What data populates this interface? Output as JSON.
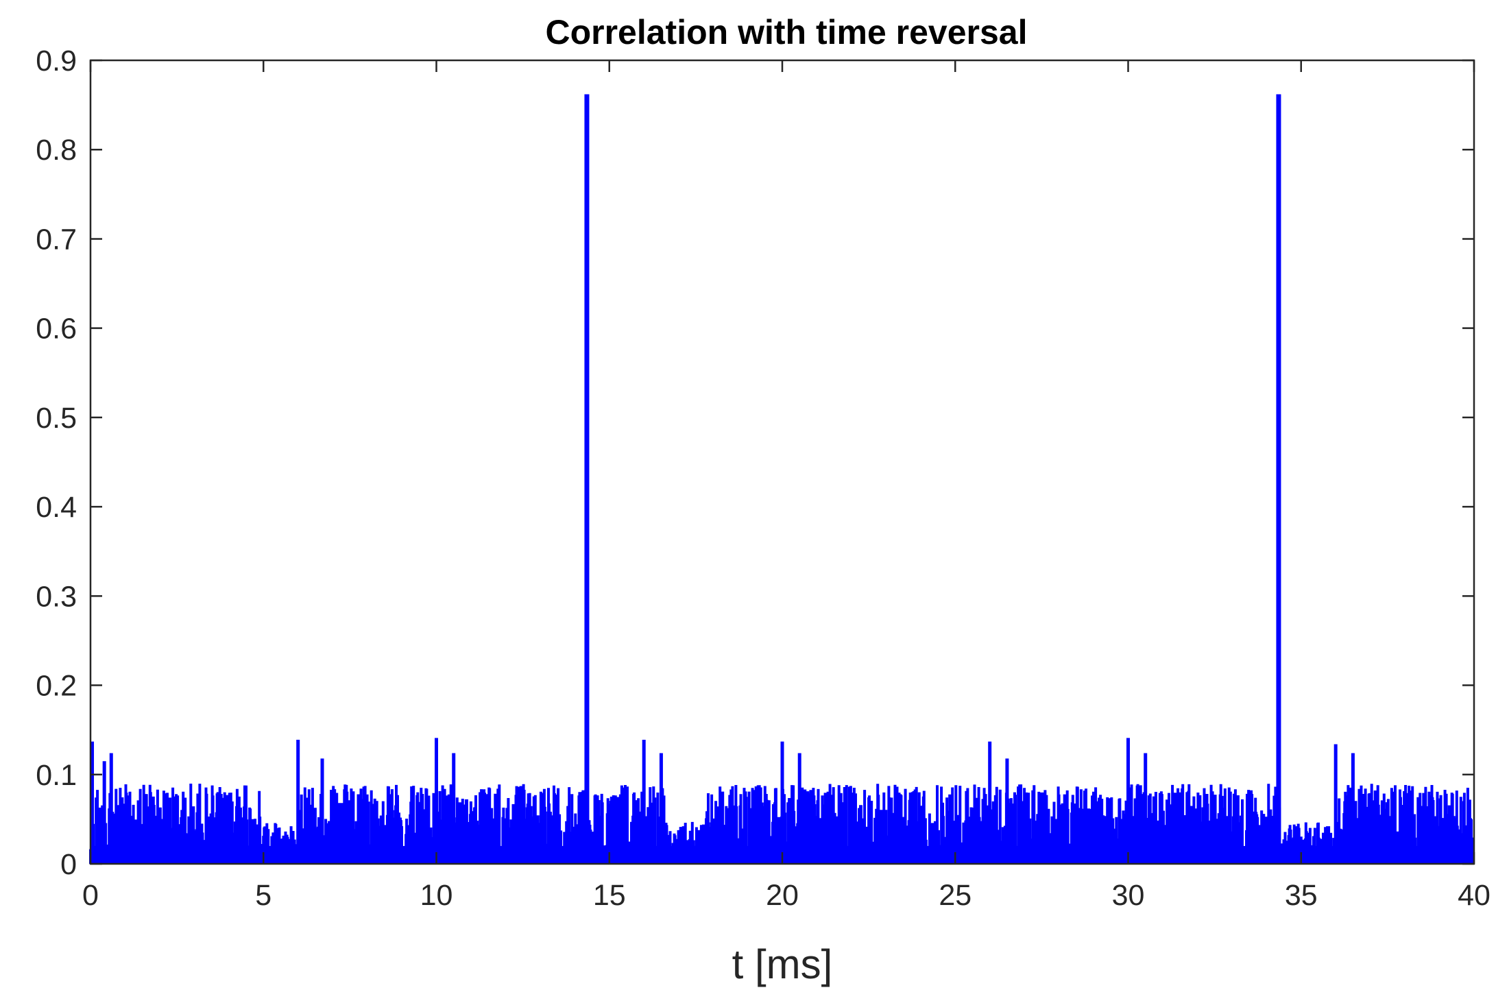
{
  "chart_data": {
    "type": "line",
    "title": "Correlation with time reversal",
    "xlabel": "t [ms]",
    "ylabel": "",
    "xlim": [
      0,
      40
    ],
    "ylim": [
      0,
      0.9
    ],
    "x_ticks": [
      "0",
      "5",
      "10",
      "15",
      "20",
      "25",
      "30",
      "35",
      "40"
    ],
    "y_ticks": [
      "0",
      "0.1",
      "0.2",
      "0.3",
      "0.4",
      "0.5",
      "0.6",
      "0.7",
      "0.8",
      "0.9"
    ],
    "grid": false,
    "line_color": "#0000ff",
    "series": [
      {
        "peaks": [
          {
            "x": 14.35,
            "y": 0.862
          },
          {
            "x": 34.35,
            "y": 0.862
          }
        ],
        "spikes": [
          {
            "x": 0.05,
            "y": 0.137
          },
          {
            "x": 0.4,
            "y": 0.115
          },
          {
            "x": 0.6,
            "y": 0.124
          },
          {
            "x": 6.0,
            "y": 0.139
          },
          {
            "x": 6.7,
            "y": 0.118
          },
          {
            "x": 10.0,
            "y": 0.141
          },
          {
            "x": 10.5,
            "y": 0.124
          },
          {
            "x": 16.0,
            "y": 0.139
          },
          {
            "x": 16.5,
            "y": 0.124
          },
          {
            "x": 20.0,
            "y": 0.137
          },
          {
            "x": 20.5,
            "y": 0.124
          },
          {
            "x": 26.0,
            "y": 0.137
          },
          {
            "x": 26.5,
            "y": 0.118
          },
          {
            "x": 30.0,
            "y": 0.141
          },
          {
            "x": 30.5,
            "y": 0.124
          },
          {
            "x": 36.0,
            "y": 0.134
          },
          {
            "x": 36.5,
            "y": 0.124
          }
        ],
        "noise_segments": [
          {
            "x_start": 0.0,
            "x_end": 4.9,
            "level": 0.09
          },
          {
            "x_start": 4.9,
            "x_end": 6.0,
            "level": 0.047
          },
          {
            "x_start": 6.0,
            "x_end": 16.6,
            "level": 0.09
          },
          {
            "x_start": 16.6,
            "x_end": 17.8,
            "level": 0.047
          },
          {
            "x_start": 17.8,
            "x_end": 34.4,
            "level": 0.09
          },
          {
            "x_start": 34.4,
            "x_end": 36.0,
            "level": 0.047
          },
          {
            "x_start": 36.0,
            "x_end": 40.0,
            "level": 0.09
          }
        ]
      }
    ]
  }
}
